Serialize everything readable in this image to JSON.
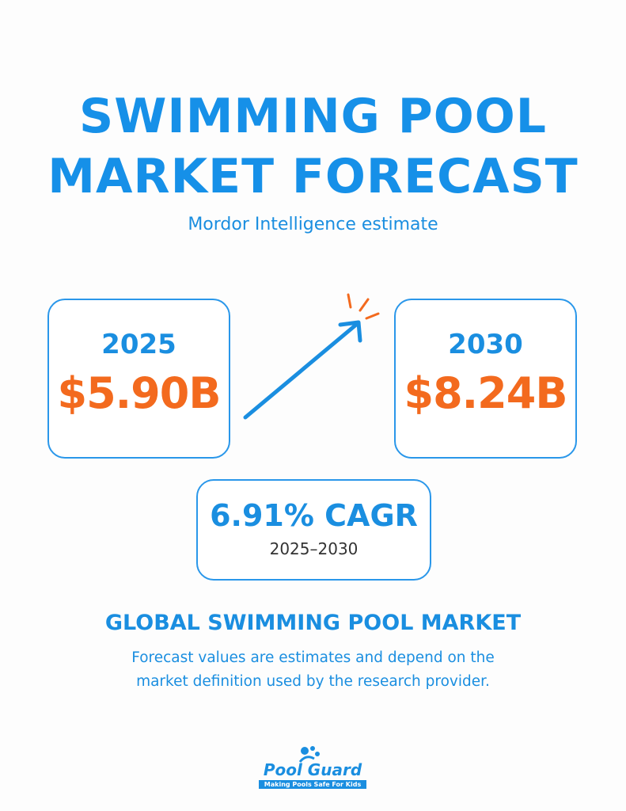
{
  "header": {
    "title": [
      "SWIMMING POOL",
      "MARKET FORECAST"
    ],
    "subtitle": "Mordor Intelligence estimate"
  },
  "cards": [
    {
      "year": "2025",
      "value": "$5.90B"
    },
    {
      "year": "2030",
      "value": "$8.24B"
    }
  ],
  "growth": {
    "rate": "6.91% CAGR",
    "period": "2025–2030"
  },
  "section": {
    "heading": "GLOBAL SWIMMING POOL MARKET",
    "note": [
      "Forecast values are estimates and depend on the",
      "market definition used by the research provider."
    ]
  },
  "logo": {
    "name": "Pool Guard",
    "tagline": "Making Pools Safe For Kids"
  }
}
